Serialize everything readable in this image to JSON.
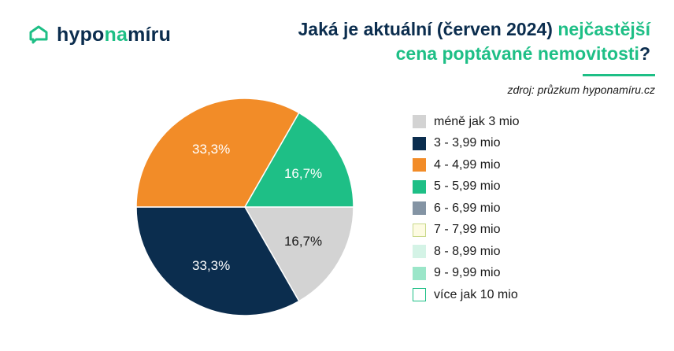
{
  "logo": {
    "part1": "hypo",
    "part2": "na",
    "part3": "míru",
    "icon": "house-chat-icon"
  },
  "title": {
    "line1_dark": "Jaká je aktuální (červen 2024) ",
    "line1_green": "nejčastější",
    "line2_green": "cena poptávané nemovitosti",
    "line2_dark": "?"
  },
  "source": "zdroj: průzkum hyponamíru.cz",
  "colors": {
    "navy": "#0b2d4e",
    "green": "#1ebf86",
    "orange": "#f28c28",
    "grey": "#d3d3d3"
  },
  "chart_data": {
    "type": "pie",
    "categories": [
      "méně jak 3 mio",
      "3 - 3,99 mio",
      "4 - 4,99 mio",
      "5 - 5,99 mio",
      "6 - 6,99 mio",
      "7 - 7,99 mio",
      "8 - 8,99 mio",
      "9 - 9,99 mio",
      "více jak 10 mio"
    ],
    "values": [
      16.7,
      33.3,
      33.3,
      16.7,
      0,
      0,
      0,
      0,
      0
    ],
    "data_labels": [
      "16,7%",
      "33,3%",
      "33,3%",
      "16,7%",
      "",
      "",
      "",
      "",
      ""
    ],
    "colors": [
      "#d3d3d3",
      "#0b2d4e",
      "#f28c28",
      "#1ebf86",
      "#8494a4",
      "#fdfbe2",
      "#d4f3e6",
      "#9be6c9",
      "#ffffff"
    ],
    "borders": [
      "none",
      "none",
      "none",
      "none",
      "none",
      "#c9d98a",
      "none",
      "none",
      "#1ebf86"
    ],
    "label_colors": [
      "#1a1a1a",
      "#ffffff",
      "#ffffff",
      "#ffffff"
    ],
    "legend_position": "right",
    "start": "right-center",
    "direction": "clockwise"
  }
}
